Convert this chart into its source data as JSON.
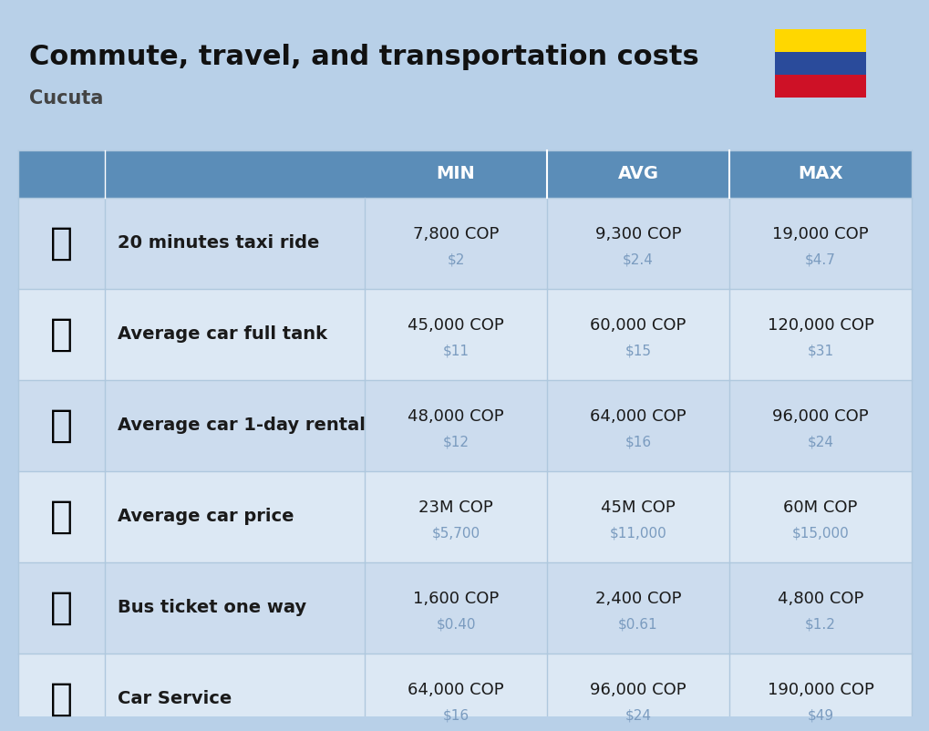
{
  "title": "Commute, travel, and transportation costs",
  "subtitle": "Cucuta",
  "bg_color": "#b8d0e8",
  "header_bg": "#5b8db8",
  "header_text_color": "#ffffff",
  "row_bg_light": "#ccdcee",
  "row_bg_white": "#dce8f4",
  "cell_text_color": "#1a1a1a",
  "sub_text_color": "#7a9bbf",
  "col_headers": [
    "MIN",
    "AVG",
    "MAX"
  ],
  "rows": [
    {
      "label": "20 minutes taxi ride",
      "min_cop": "7,800 COP",
      "min_usd": "$2",
      "avg_cop": "9,300 COP",
      "avg_usd": "$2.4",
      "max_cop": "19,000 COP",
      "max_usd": "$4.7"
    },
    {
      "label": "Average car full tank",
      "min_cop": "45,000 COP",
      "min_usd": "$11",
      "avg_cop": "60,000 COP",
      "avg_usd": "$15",
      "max_cop": "120,000 COP",
      "max_usd": "$31"
    },
    {
      "label": "Average car 1-day rental",
      "min_cop": "48,000 COP",
      "min_usd": "$12",
      "avg_cop": "64,000 COP",
      "avg_usd": "$16",
      "max_cop": "96,000 COP",
      "max_usd": "$24"
    },
    {
      "label": "Average car price",
      "min_cop": "23M COP",
      "min_usd": "$5,700",
      "avg_cop": "45M COP",
      "avg_usd": "$11,000",
      "max_cop": "60M COP",
      "max_usd": "$15,000"
    },
    {
      "label": "Bus ticket one way",
      "min_cop": "1,600 COP",
      "min_usd": "$0.40",
      "avg_cop": "2,400 COP",
      "avg_usd": "$0.61",
      "max_cop": "4,800 COP",
      "max_usd": "$1.2"
    },
    {
      "label": "Car Service",
      "min_cop": "64,000 COP",
      "min_usd": "$16",
      "avg_cop": "96,000 COP",
      "avg_usd": "$24",
      "max_cop": "190,000 COP",
      "max_usd": "$49"
    }
  ],
  "flag_colors": [
    "#FFD700",
    "#2A4B9B",
    "#CE1126"
  ],
  "icon_emojis": [
    "🚖",
    "⛽️",
    "🚙",
    "🚗",
    "🚌",
    "🔧🚗"
  ]
}
